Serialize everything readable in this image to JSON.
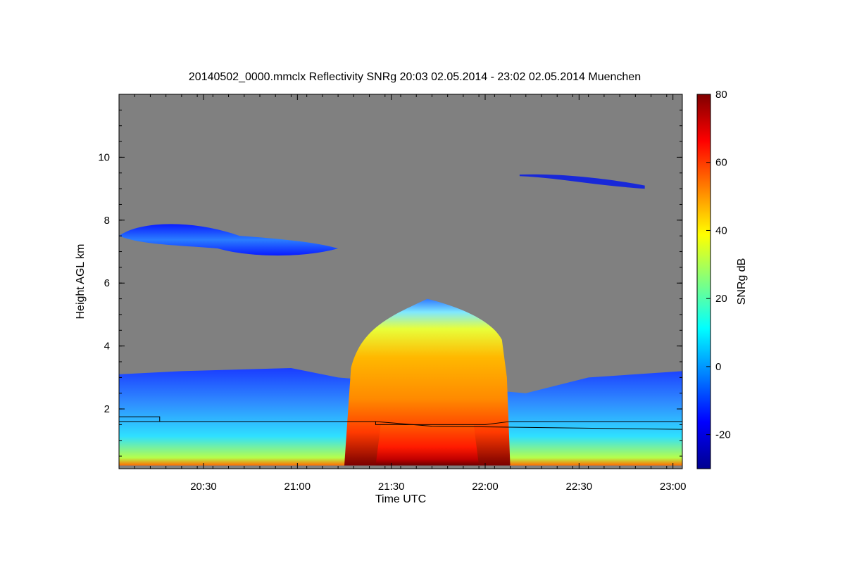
{
  "chart_data": {
    "type": "heatmap",
    "title": "20140502_0000.mmclx Reflectivity SNRg   20:03 02.05.2014 - 23:02 02.05.2014 Muenchen",
    "xlabel": "Time UTC",
    "ylabel": "Height AGL km",
    "x_range": [
      "20:03",
      "23:02"
    ],
    "xlim_minutes": [
      0,
      180
    ],
    "ylim": [
      0.1,
      12
    ],
    "x_ticks": [
      "20:30",
      "21:00",
      "21:30",
      "22:00",
      "22:30",
      "23:00"
    ],
    "x_tick_minutes": [
      27,
      57,
      87,
      117,
      147,
      177
    ],
    "y_ticks": [
      2,
      4,
      6,
      8,
      10
    ],
    "background_color": "#808080",
    "colorbar": {
      "label": "SNRg dB",
      "min": -30,
      "max": 80,
      "ticks": [
        -20,
        0,
        20,
        40,
        60,
        80
      ],
      "colormap": [
        "#00008f",
        "#0000ff",
        "#0080ff",
        "#00ffff",
        "#80ff80",
        "#ffff00",
        "#ff8000",
        "#ff0000",
        "#800000"
      ]
    },
    "features": [
      {
        "name": "low-level cloud layer",
        "t_start": 0,
        "t_end": 180,
        "h_bottom": 0.2,
        "h_top": 3.0,
        "snr_db": 5
      },
      {
        "name": "convective cell",
        "t_start": 72,
        "t_end": 125,
        "h_bottom": 0.2,
        "h_top": 5.5,
        "snr_db": 50
      },
      {
        "name": "convective core",
        "t_start": 82,
        "t_end": 115,
        "h_bottom": 0.2,
        "h_top": 1.5,
        "snr_db": 70
      },
      {
        "name": "mid-level cloud",
        "t_start": 0,
        "t_end": 70,
        "h_bottom": 6.8,
        "h_top": 8.0,
        "snr_db": -5
      },
      {
        "name": "upper-level cloud",
        "t_start": 128,
        "t_end": 168,
        "h_bottom": 9.0,
        "h_top": 9.5,
        "snr_db": -15
      }
    ],
    "cloud_base_line": {
      "color": "#000000",
      "points": [
        [
          0,
          1.75
        ],
        [
          13,
          1.75
        ],
        [
          13,
          1.6
        ],
        [
          82,
          1.6
        ],
        [
          82,
          1.5
        ],
        [
          117,
          1.5
        ],
        [
          125,
          1.6
        ],
        [
          180,
          1.6
        ]
      ]
    },
    "second_line": {
      "color": "#000000",
      "points": [
        [
          0,
          1.6
        ],
        [
          82,
          1.6
        ],
        [
          100,
          1.45
        ],
        [
          180,
          1.35
        ]
      ]
    }
  }
}
